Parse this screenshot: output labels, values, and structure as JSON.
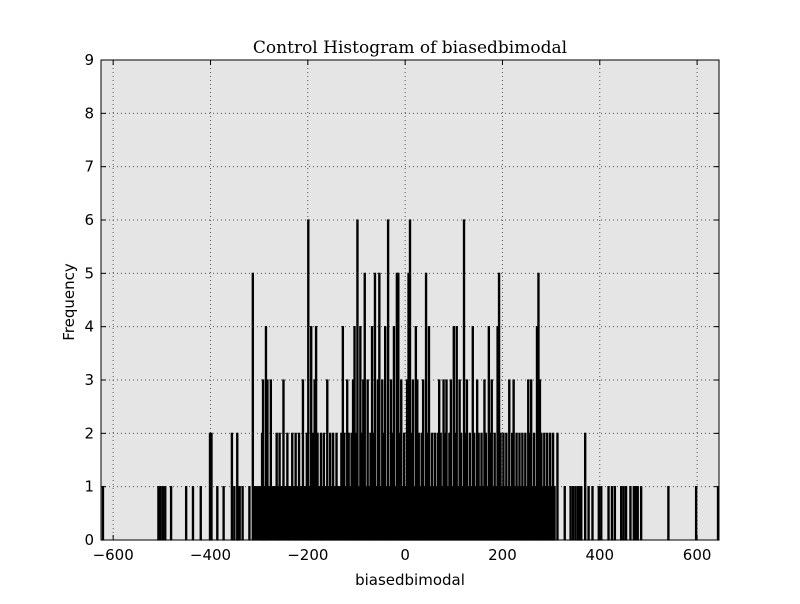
{
  "chart_data": {
    "type": "bar",
    "title": "Control Histogram of biasedbimodal",
    "xlabel": "biasedbimodal",
    "ylabel": "Frequency",
    "xlim": [
      -625,
      645
    ],
    "ylim": [
      0,
      9
    ],
    "xticks": [
      -600,
      -400,
      -200,
      0,
      200,
      400,
      600
    ],
    "xtick_labels": [
      "−600",
      "−400",
      "−200",
      "0",
      "200",
      "400",
      "600"
    ],
    "yticks": [
      0,
      1,
      2,
      3,
      4,
      5,
      6,
      7,
      8,
      9
    ],
    "ytick_labels": [
      "0",
      "1",
      "2",
      "3",
      "4",
      "5",
      "6",
      "7",
      "8",
      "9"
    ],
    "grid": true,
    "bin_width": 2.4,
    "bins": [
      [
        -621,
        1
      ],
      [
        -507,
        1
      ],
      [
        -503,
        1
      ],
      [
        -498,
        1
      ],
      [
        -493,
        1
      ],
      [
        -481,
        1
      ],
      [
        -450,
        1
      ],
      [
        -436,
        1
      ],
      [
        -420,
        1
      ],
      [
        -401,
        2
      ],
      [
        -398,
        2
      ],
      [
        -386,
        1
      ],
      [
        -373,
        1
      ],
      [
        -356,
        2
      ],
      [
        -351,
        1
      ],
      [
        -345,
        2
      ],
      [
        -343,
        1
      ],
      [
        -340,
        1
      ],
      [
        -334,
        1
      ],
      [
        -320,
        1
      ],
      [
        -313,
        5
      ],
      [
        -310,
        1
      ],
      [
        -306,
        1
      ],
      [
        -302,
        1
      ],
      [
        -298,
        1
      ],
      [
        -294,
        2
      ],
      [
        -292,
        3
      ],
      [
        -289,
        1
      ],
      [
        -286,
        4
      ],
      [
        -283,
        3
      ],
      [
        -280,
        1
      ],
      [
        -276,
        3
      ],
      [
        -272,
        1
      ],
      [
        -268,
        1
      ],
      [
        -264,
        2
      ],
      [
        -261,
        1
      ],
      [
        -258,
        2
      ],
      [
        -254,
        1
      ],
      [
        -250,
        3
      ],
      [
        -246,
        1
      ],
      [
        -242,
        2
      ],
      [
        -239,
        1
      ],
      [
        -236,
        1
      ],
      [
        -232,
        2
      ],
      [
        -228,
        1
      ],
      [
        -225,
        2
      ],
      [
        -221,
        1
      ],
      [
        -218,
        2
      ],
      [
        -214,
        1
      ],
      [
        -210,
        3
      ],
      [
        -206,
        1
      ],
      [
        -202,
        2
      ],
      [
        -199,
        6
      ],
      [
        -196,
        1
      ],
      [
        -193,
        4
      ],
      [
        -190,
        2
      ],
      [
        -186,
        3
      ],
      [
        -183,
        4
      ],
      [
        -180,
        2
      ],
      [
        -176,
        1
      ],
      [
        -173,
        2
      ],
      [
        -170,
        1
      ],
      [
        -167,
        2
      ],
      [
        -164,
        1
      ],
      [
        -160,
        3
      ],
      [
        -157,
        1
      ],
      [
        -154,
        2
      ],
      [
        -151,
        1
      ],
      [
        -148,
        2
      ],
      [
        -144,
        1
      ],
      [
        -141,
        2
      ],
      [
        -138,
        1
      ],
      [
        -134,
        1
      ],
      [
        -131,
        2
      ],
      [
        -128,
        4
      ],
      [
        -125,
        2
      ],
      [
        -122,
        1
      ],
      [
        -119,
        3
      ],
      [
        -116,
        2
      ],
      [
        -113,
        1
      ],
      [
        -110,
        2
      ],
      [
        -107,
        3
      ],
      [
        -104,
        4
      ],
      [
        -101,
        2
      ],
      [
        -98,
        6
      ],
      [
        -95,
        1
      ],
      [
        -92,
        4
      ],
      [
        -89,
        2
      ],
      [
        -86,
        3
      ],
      [
        -83,
        5
      ],
      [
        -80,
        1
      ],
      [
        -77,
        3
      ],
      [
        -74,
        1
      ],
      [
        -71,
        2
      ],
      [
        -68,
        4
      ],
      [
        -65,
        2
      ],
      [
        -62,
        5
      ],
      [
        -59,
        1
      ],
      [
        -56,
        3
      ],
      [
        -53,
        5
      ],
      [
        -50,
        1
      ],
      [
        -47,
        3
      ],
      [
        -44,
        2
      ],
      [
        -41,
        4
      ],
      [
        -38,
        1
      ],
      [
        -35,
        6
      ],
      [
        -32,
        1
      ],
      [
        -29,
        3
      ],
      [
        -26,
        2
      ],
      [
        -23,
        4
      ],
      [
        -20,
        1
      ],
      [
        -17,
        5
      ],
      [
        -14,
        5
      ],
      [
        -11,
        2
      ],
      [
        -8,
        3
      ],
      [
        -5,
        1
      ],
      [
        -2,
        2
      ],
      [
        1,
        1
      ],
      [
        4,
        3
      ],
      [
        7,
        5
      ],
      [
        10,
        6
      ],
      [
        13,
        2
      ],
      [
        16,
        3
      ],
      [
        19,
        1
      ],
      [
        22,
        4
      ],
      [
        25,
        3
      ],
      [
        28,
        2
      ],
      [
        31,
        1
      ],
      [
        34,
        2
      ],
      [
        37,
        3
      ],
      [
        40,
        1
      ],
      [
        43,
        5
      ],
      [
        46,
        2
      ],
      [
        49,
        4
      ],
      [
        52,
        1
      ],
      [
        55,
        2
      ],
      [
        58,
        1
      ],
      [
        61,
        2
      ],
      [
        64,
        1
      ],
      [
        67,
        2
      ],
      [
        70,
        3
      ],
      [
        73,
        2
      ],
      [
        76,
        1
      ],
      [
        79,
        3
      ],
      [
        82,
        2
      ],
      [
        85,
        3
      ],
      [
        88,
        1
      ],
      [
        91,
        2
      ],
      [
        94,
        3
      ],
      [
        97,
        1
      ],
      [
        100,
        4
      ],
      [
        103,
        2
      ],
      [
        106,
        4
      ],
      [
        109,
        1
      ],
      [
        112,
        3
      ],
      [
        115,
        2
      ],
      [
        118,
        1
      ],
      [
        121,
        6
      ],
      [
        124,
        2
      ],
      [
        127,
        3
      ],
      [
        130,
        1
      ],
      [
        133,
        2
      ],
      [
        136,
        1
      ],
      [
        139,
        4
      ],
      [
        142,
        2
      ],
      [
        145,
        1
      ],
      [
        148,
        3
      ],
      [
        151,
        2
      ],
      [
        154,
        1
      ],
      [
        157,
        2
      ],
      [
        160,
        1
      ],
      [
        163,
        3
      ],
      [
        166,
        2
      ],
      [
        169,
        1
      ],
      [
        172,
        4
      ],
      [
        175,
        2
      ],
      [
        178,
        3
      ],
      [
        181,
        1
      ],
      [
        184,
        2
      ],
      [
        187,
        1
      ],
      [
        190,
        4
      ],
      [
        193,
        5
      ],
      [
        196,
        2
      ],
      [
        199,
        1
      ],
      [
        202,
        2
      ],
      [
        205,
        1
      ],
      [
        208,
        2
      ],
      [
        211,
        1
      ],
      [
        214,
        3
      ],
      [
        217,
        1
      ],
      [
        220,
        2
      ],
      [
        223,
        3
      ],
      [
        226,
        1
      ],
      [
        229,
        2
      ],
      [
        232,
        1
      ],
      [
        235,
        2
      ],
      [
        238,
        1
      ],
      [
        241,
        2
      ],
      [
        244,
        1
      ],
      [
        247,
        2
      ],
      [
        250,
        1
      ],
      [
        253,
        3
      ],
      [
        256,
        2
      ],
      [
        259,
        3
      ],
      [
        262,
        1
      ],
      [
        265,
        2
      ],
      [
        268,
        1
      ],
      [
        271,
        4
      ],
      [
        274,
        5
      ],
      [
        277,
        3
      ],
      [
        280,
        2
      ],
      [
        283,
        1
      ],
      [
        286,
        2
      ],
      [
        289,
        1
      ],
      [
        292,
        2
      ],
      [
        295,
        1
      ],
      [
        298,
        2
      ],
      [
        301,
        1
      ],
      [
        304,
        2
      ],
      [
        307,
        1
      ],
      [
        313,
        2
      ],
      [
        328,
        1
      ],
      [
        340,
        1
      ],
      [
        345,
        1
      ],
      [
        350,
        1
      ],
      [
        355,
        1
      ],
      [
        358,
        1
      ],
      [
        362,
        1
      ],
      [
        370,
        2
      ],
      [
        377,
        1
      ],
      [
        385,
        1
      ],
      [
        398,
        1
      ],
      [
        403,
        1
      ],
      [
        418,
        1
      ],
      [
        425,
        1
      ],
      [
        431,
        1
      ],
      [
        444,
        1
      ],
      [
        449,
        1
      ],
      [
        454,
        1
      ],
      [
        463,
        1
      ],
      [
        470,
        1
      ],
      [
        474,
        1
      ],
      [
        478,
        1
      ],
      [
        485,
        1
      ],
      [
        541,
        1
      ],
      [
        598,
        1
      ],
      [
        643,
        1
      ]
    ]
  }
}
